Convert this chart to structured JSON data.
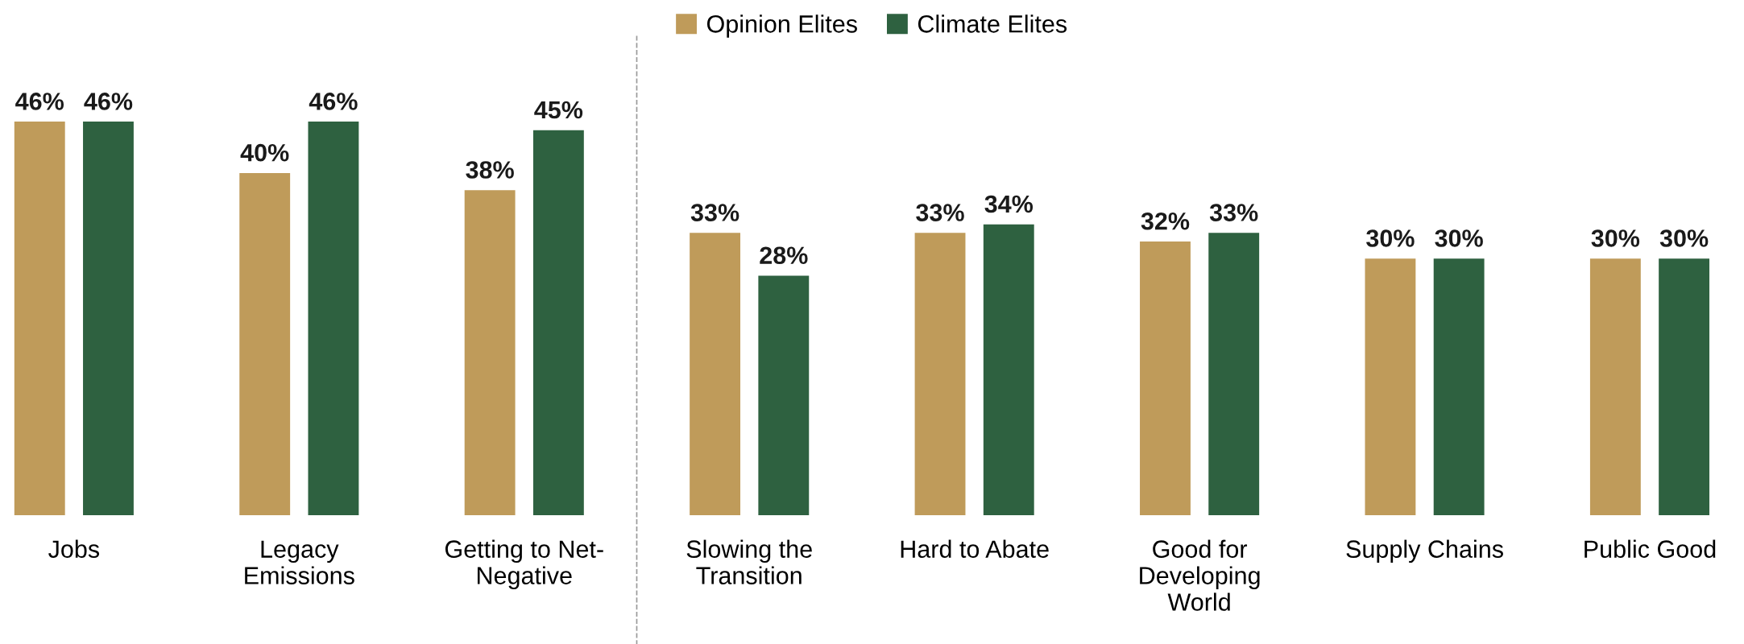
{
  "chart_data": {
    "type": "bar",
    "categories": [
      "Jobs",
      "Legacy\nEmissions",
      "Getting to Net-\nNegative",
      "Slowing the\nTransition",
      "Hard to Abate",
      "Good for\nDeveloping\nWorld",
      "Supply Chains",
      "Public Good"
    ],
    "series": [
      {
        "name": "Opinion Elites",
        "color": "#bf9b5a",
        "values": [
          46,
          40,
          38,
          33,
          33,
          32,
          30,
          30
        ],
        "value_labels": [
          "46%",
          "40%",
          "38%",
          "33%",
          "33%",
          "32%",
          "30%",
          "30%"
        ]
      },
      {
        "name": "Climate Elites",
        "color": "#2e6140",
        "values": [
          46,
          46,
          45,
          28,
          34,
          33,
          30,
          30
        ],
        "value_labels": [
          "46%",
          "46%",
          "45%",
          "28%",
          "34%",
          "33%",
          "30%",
          "30%"
        ]
      }
    ],
    "legend": "top",
    "grid": false
  }
}
